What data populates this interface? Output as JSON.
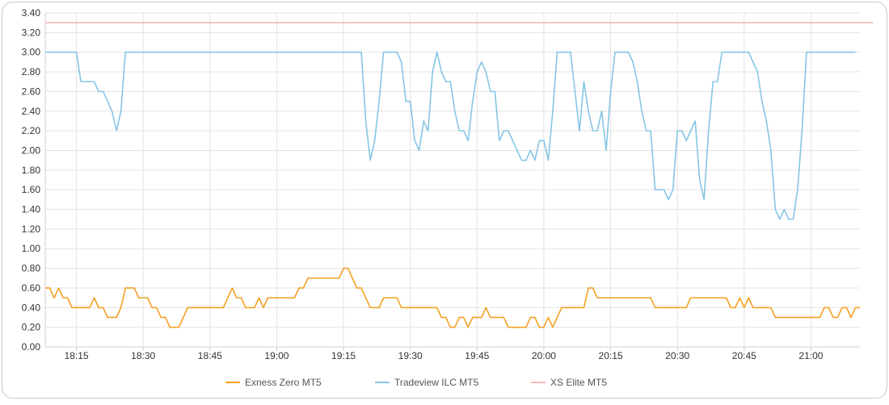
{
  "chart_data": {
    "type": "line",
    "title": "",
    "xlabel": "",
    "ylabel": "",
    "ylim": [
      0,
      3.4
    ],
    "yticks": [
      "0.00",
      "0.20",
      "0.40",
      "0.60",
      "0.80",
      "1.00",
      "1.20",
      "1.40",
      "1.60",
      "1.80",
      "2.00",
      "2.20",
      "2.40",
      "2.60",
      "2.80",
      "3.00",
      "3.20",
      "3.40"
    ],
    "x_start": "18:08",
    "x_step_minutes": 1,
    "xticks": [
      {
        "label": "18:15",
        "minute": 7
      },
      {
        "label": "18:30",
        "minute": 22
      },
      {
        "label": "18:45",
        "minute": 37
      },
      {
        "label": "19:00",
        "minute": 52
      },
      {
        "label": "19:15",
        "minute": 67
      },
      {
        "label": "19:30",
        "minute": 82
      },
      {
        "label": "19:45",
        "minute": 97
      },
      {
        "label": "20:00",
        "minute": 112
      },
      {
        "label": "20:15",
        "minute": 127
      },
      {
        "label": "20:30",
        "minute": 142
      },
      {
        "label": "20:45",
        "minute": 157
      },
      {
        "label": "21:00",
        "minute": 172
      }
    ],
    "grid": true,
    "legend_position": "bottom",
    "series": [
      {
        "name": "Exness Zero MT5",
        "color": "#f4a024",
        "values": [
          0.6,
          0.6,
          0.5,
          0.6,
          0.5,
          0.5,
          0.4,
          0.4,
          0.4,
          0.4,
          0.4,
          0.5,
          0.4,
          0.4,
          0.3,
          0.3,
          0.3,
          0.4,
          0.6,
          0.6,
          0.6,
          0.5,
          0.5,
          0.5,
          0.4,
          0.4,
          0.3,
          0.3,
          0.2,
          0.2,
          0.2,
          0.3,
          0.4,
          0.4,
          0.4,
          0.4,
          0.4,
          0.4,
          0.4,
          0.4,
          0.4,
          0.5,
          0.6,
          0.5,
          0.5,
          0.4,
          0.4,
          0.4,
          0.5,
          0.4,
          0.5,
          0.5,
          0.5,
          0.5,
          0.5,
          0.5,
          0.5,
          0.6,
          0.6,
          0.7,
          0.7,
          0.7,
          0.7,
          0.7,
          0.7,
          0.7,
          0.7,
          0.8,
          0.8,
          0.7,
          0.6,
          0.6,
          0.5,
          0.4,
          0.4,
          0.4,
          0.5,
          0.5,
          0.5,
          0.5,
          0.4,
          0.4,
          0.4,
          0.4,
          0.4,
          0.4,
          0.4,
          0.4,
          0.4,
          0.3,
          0.3,
          0.2,
          0.2,
          0.3,
          0.3,
          0.2,
          0.3,
          0.3,
          0.3,
          0.4,
          0.3,
          0.3,
          0.3,
          0.3,
          0.2,
          0.2,
          0.2,
          0.2,
          0.2,
          0.3,
          0.3,
          0.2,
          0.2,
          0.3,
          0.2,
          0.3,
          0.4,
          0.4,
          0.4,
          0.4,
          0.4,
          0.4,
          0.6,
          0.6,
          0.5,
          0.5,
          0.5,
          0.5,
          0.5,
          0.5,
          0.5,
          0.5,
          0.5,
          0.5,
          0.5,
          0.5,
          0.5,
          0.4,
          0.4,
          0.4,
          0.4,
          0.4,
          0.4,
          0.4,
          0.4,
          0.5,
          0.5,
          0.5,
          0.5,
          0.5,
          0.5,
          0.5,
          0.5,
          0.5,
          0.4,
          0.4,
          0.5,
          0.4,
          0.5,
          0.4,
          0.4,
          0.4,
          0.4,
          0.4,
          0.3,
          0.3,
          0.3,
          0.3,
          0.3,
          0.3,
          0.3,
          0.3,
          0.3,
          0.3,
          0.3,
          0.4,
          0.4,
          0.3,
          0.3,
          0.4,
          0.4,
          0.3,
          0.4,
          0.4
        ]
      },
      {
        "name": "Tradeview ILC MT5",
        "color": "#86c5e6",
        "values": [
          3.0,
          3.0,
          3.0,
          3.0,
          3.0,
          3.0,
          3.0,
          3.0,
          2.7,
          2.7,
          2.7,
          2.7,
          2.6,
          2.6,
          2.5,
          2.4,
          2.2,
          2.4,
          3.0,
          3.0,
          3.0,
          3.0,
          3.0,
          3.0,
          3.0,
          3.0,
          3.0,
          3.0,
          3.0,
          3.0,
          3.0,
          3.0,
          3.0,
          3.0,
          3.0,
          3.0,
          3.0,
          3.0,
          3.0,
          3.0,
          3.0,
          3.0,
          3.0,
          3.0,
          3.0,
          3.0,
          3.0,
          3.0,
          3.0,
          3.0,
          3.0,
          3.0,
          3.0,
          3.0,
          3.0,
          3.0,
          3.0,
          3.0,
          3.0,
          3.0,
          3.0,
          3.0,
          3.0,
          3.0,
          3.0,
          3.0,
          3.0,
          3.0,
          3.0,
          3.0,
          3.0,
          3.0,
          2.3,
          1.9,
          2.1,
          2.5,
          3.0,
          3.0,
          3.0,
          3.0,
          2.9,
          2.5,
          2.5,
          2.1,
          2.0,
          2.3,
          2.2,
          2.8,
          3.0,
          2.8,
          2.7,
          2.7,
          2.4,
          2.2,
          2.2,
          2.1,
          2.5,
          2.8,
          2.9,
          2.8,
          2.6,
          2.6,
          2.1,
          2.2,
          2.2,
          2.1,
          2.0,
          1.9,
          1.9,
          2.0,
          1.9,
          2.1,
          2.1,
          1.9,
          2.4,
          3.0,
          3.0,
          3.0,
          3.0,
          2.6,
          2.2,
          2.7,
          2.4,
          2.2,
          2.2,
          2.4,
          2.0,
          2.6,
          3.0,
          3.0,
          3.0,
          3.0,
          2.9,
          2.7,
          2.4,
          2.2,
          2.2,
          1.6,
          1.6,
          1.6,
          1.5,
          1.6,
          2.2,
          2.2,
          2.1,
          2.2,
          2.3,
          1.7,
          1.5,
          2.2,
          2.7,
          2.7,
          3.0,
          3.0,
          3.0,
          3.0,
          3.0,
          3.0,
          3.0,
          2.9,
          2.8,
          2.5,
          2.3,
          2.0,
          1.4,
          1.3,
          1.4,
          1.3,
          1.3,
          1.6,
          2.2,
          3.0,
          3.0,
          3.0,
          3.0,
          3.0,
          3.0,
          3.0,
          3.0,
          3.0,
          3.0,
          3.0,
          3.0
        ]
      },
      {
        "name": "XS Elite MT5",
        "color": "#f4b8b8",
        "values": [
          3.3,
          3.3,
          3.3,
          3.3,
          3.3,
          3.3,
          3.3,
          3.3,
          3.3,
          3.3,
          3.3,
          3.3,
          3.3,
          3.3,
          3.3,
          3.3,
          3.3,
          3.3,
          3.3,
          3.3,
          3.3,
          3.3,
          3.3,
          3.3,
          3.3,
          3.3,
          3.3,
          3.3,
          3.3,
          3.3,
          3.3,
          3.3,
          3.3,
          3.3,
          3.3,
          3.3,
          3.3,
          3.3,
          3.3,
          3.3,
          3.3,
          3.3,
          3.3,
          3.3,
          3.3,
          3.3,
          3.3,
          3.3,
          3.3,
          3.3,
          3.3,
          3.3,
          3.3,
          3.3,
          3.3,
          3.3,
          3.3,
          3.3,
          3.3,
          3.3,
          3.3,
          3.3,
          3.3,
          3.3,
          3.3,
          3.3,
          3.3,
          3.3,
          3.3,
          3.3,
          3.3,
          3.3,
          3.3,
          3.3,
          3.3,
          3.3,
          3.3,
          3.3,
          3.3,
          3.3,
          3.3,
          3.3,
          3.3,
          3.3,
          3.3,
          3.3,
          3.3,
          3.3,
          3.3,
          3.3,
          3.3,
          3.3,
          3.3,
          3.3,
          3.3,
          3.3,
          3.3,
          3.3,
          3.3,
          3.3,
          3.3,
          3.3,
          3.3,
          3.3,
          3.3,
          3.3,
          3.3,
          3.3,
          3.3,
          3.3,
          3.3,
          3.3,
          3.3,
          3.3,
          3.3,
          3.3,
          3.3,
          3.3,
          3.3,
          3.3,
          3.3,
          3.3,
          3.3,
          3.3,
          3.3,
          3.3,
          3.3,
          3.3,
          3.3,
          3.3,
          3.3,
          3.3,
          3.3,
          3.3,
          3.3,
          3.3,
          3.3,
          3.3,
          3.3,
          3.3,
          3.3,
          3.3,
          3.3,
          3.3,
          3.3,
          3.3,
          3.3,
          3.3,
          3.3,
          3.3,
          3.3,
          3.3,
          3.3,
          3.3,
          3.3,
          3.3,
          3.3,
          3.3,
          3.3,
          3.3,
          3.3,
          3.3,
          3.3,
          3.3,
          3.3,
          3.3,
          3.3,
          3.3,
          3.3,
          3.3,
          3.3,
          3.3,
          3.3,
          3.3,
          3.3,
          3.3,
          3.3,
          3.3,
          3.3,
          3.3,
          3.3,
          3.3,
          3.3,
          3.3,
          3.3,
          3.3,
          3.3
        ]
      }
    ]
  }
}
